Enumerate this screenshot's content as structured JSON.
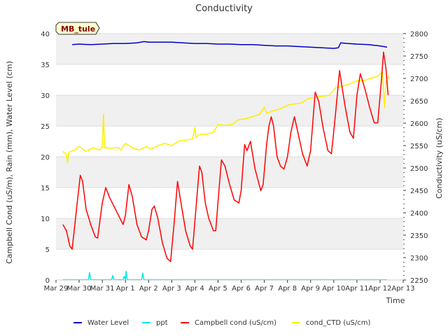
{
  "chart_data": {
    "type": "line",
    "title": "Conductivity",
    "xlabel": "Time",
    "ylabel_left": "Campbell Cond (uS/m), Rain (mm), Water Level (cm)",
    "ylabel_right": "Conductivity (uS/cm)",
    "station_label": "MB_tule",
    "x_ticks": [
      {
        "day": 0,
        "label": "Mar 29"
      },
      {
        "day": 1,
        "label": "Mar 30"
      },
      {
        "day": 2,
        "label": "Mar 31"
      },
      {
        "day": 3,
        "label": "Apr 1"
      },
      {
        "day": 4,
        "label": "Apr 2"
      },
      {
        "day": 5,
        "label": "Apr 3"
      },
      {
        "day": 6,
        "label": "Apr 4"
      },
      {
        "day": 7,
        "label": "Apr 5"
      },
      {
        "day": 8,
        "label": "Apr 6"
      },
      {
        "day": 9,
        "label": "Apr 7"
      },
      {
        "day": 10,
        "label": "Apr 8"
      },
      {
        "day": 11,
        "label": "Apr 9"
      },
      {
        "day": 12,
        "label": "Apr 10"
      },
      {
        "day": 13,
        "label": "Apr 11"
      },
      {
        "day": 14,
        "label": "Apr 12"
      },
      {
        "day": 15,
        "label": "Apr 13"
      }
    ],
    "xlim": [
      0,
      15
    ],
    "ylim_left": [
      0,
      40
    ],
    "ylim_right": [
      2250,
      2800
    ],
    "y_ticks_left": [
      "0",
      "5",
      "10",
      "15",
      "20",
      "25",
      "30",
      "35",
      "40"
    ],
    "y_ticks_right": [
      "2250",
      "2300",
      "2350",
      "2400",
      "2450",
      "2500",
      "2550",
      "2600",
      "2650",
      "2700",
      "2750",
      "2800"
    ],
    "series": [
      {
        "name": "Water Level",
        "axis": "left",
        "color": "#0000cc",
        "points": [
          [
            0.7,
            38.2
          ],
          [
            1.0,
            38.3
          ],
          [
            1.5,
            38.2
          ],
          [
            2.0,
            38.3
          ],
          [
            2.5,
            38.4
          ],
          [
            3.0,
            38.4
          ],
          [
            3.5,
            38.5
          ],
          [
            3.8,
            38.7
          ],
          [
            4.0,
            38.6
          ],
          [
            4.5,
            38.6
          ],
          [
            5.0,
            38.6
          ],
          [
            5.5,
            38.5
          ],
          [
            6.0,
            38.4
          ],
          [
            6.5,
            38.4
          ],
          [
            7.0,
            38.3
          ],
          [
            7.5,
            38.3
          ],
          [
            8.0,
            38.2
          ],
          [
            8.5,
            38.2
          ],
          [
            9.0,
            38.1
          ],
          [
            9.5,
            38.0
          ],
          [
            10.0,
            38.0
          ],
          [
            10.5,
            37.9
          ],
          [
            11.0,
            37.8
          ],
          [
            11.5,
            37.7
          ],
          [
            12.0,
            37.6
          ],
          [
            12.2,
            37.7
          ],
          [
            12.3,
            38.5
          ],
          [
            12.6,
            38.4
          ],
          [
            13.0,
            38.3
          ],
          [
            13.5,
            38.2
          ],
          [
            14.0,
            38.0
          ],
          [
            14.3,
            37.8
          ]
        ]
      },
      {
        "name": "ppt",
        "axis": "left",
        "color": "#00e5e5",
        "points": [
          [
            0.3,
            0.05
          ],
          [
            1.4,
            0.05
          ],
          [
            1.45,
            1.2
          ],
          [
            1.5,
            0.05
          ],
          [
            2.4,
            0.05
          ],
          [
            2.45,
            0.7
          ],
          [
            2.5,
            0.05
          ],
          [
            2.9,
            0.05
          ],
          [
            2.95,
            0.6
          ],
          [
            3.0,
            0.05
          ],
          [
            3.03,
            1.4
          ],
          [
            3.08,
            0.05
          ],
          [
            3.7,
            0.05
          ],
          [
            3.75,
            1.1
          ],
          [
            3.8,
            0.05
          ],
          [
            14.3,
            0.05
          ]
        ]
      },
      {
        "name": "Campbell cond (uS/cm)",
        "axis": "left",
        "color": "#ff0000",
        "points": [
          [
            0.3,
            9.0
          ],
          [
            0.45,
            8.0
          ],
          [
            0.6,
            5.5
          ],
          [
            0.7,
            5.0
          ],
          [
            0.9,
            12.0
          ],
          [
            1.05,
            17.0
          ],
          [
            1.15,
            16.0
          ],
          [
            1.3,
            11.5
          ],
          [
            1.5,
            9.0
          ],
          [
            1.7,
            7.0
          ],
          [
            1.8,
            6.8
          ],
          [
            2.0,
            12.5
          ],
          [
            2.15,
            15.0
          ],
          [
            2.3,
            13.5
          ],
          [
            2.5,
            12.0
          ],
          [
            2.7,
            10.5
          ],
          [
            2.9,
            9.0
          ],
          [
            3.0,
            10.5
          ],
          [
            3.15,
            15.5
          ],
          [
            3.3,
            13.5
          ],
          [
            3.5,
            9.0
          ],
          [
            3.7,
            7.0
          ],
          [
            3.9,
            6.5
          ],
          [
            4.0,
            8.0
          ],
          [
            4.15,
            11.5
          ],
          [
            4.25,
            12.0
          ],
          [
            4.4,
            10.0
          ],
          [
            4.6,
            6.0
          ],
          [
            4.8,
            3.5
          ],
          [
            4.95,
            3.0
          ],
          [
            5.1,
            9.0
          ],
          [
            5.25,
            16.0
          ],
          [
            5.4,
            12.5
          ],
          [
            5.6,
            8.0
          ],
          [
            5.8,
            5.5
          ],
          [
            5.9,
            5.0
          ],
          [
            6.1,
            14.0
          ],
          [
            6.2,
            18.5
          ],
          [
            6.3,
            17.5
          ],
          [
            6.45,
            12.5
          ],
          [
            6.6,
            10.0
          ],
          [
            6.8,
            8.0
          ],
          [
            6.9,
            8.0
          ],
          [
            7.05,
            15.0
          ],
          [
            7.15,
            19.5
          ],
          [
            7.3,
            18.5
          ],
          [
            7.5,
            15.5
          ],
          [
            7.7,
            13.0
          ],
          [
            7.9,
            12.5
          ],
          [
            8.0,
            14.5
          ],
          [
            8.15,
            22.0
          ],
          [
            8.25,
            21.0
          ],
          [
            8.4,
            22.5
          ],
          [
            8.6,
            18.0
          ],
          [
            8.85,
            14.5
          ],
          [
            8.95,
            15.5
          ],
          [
            9.1,
            22.0
          ],
          [
            9.2,
            25.0
          ],
          [
            9.3,
            26.5
          ],
          [
            9.4,
            25.0
          ],
          [
            9.55,
            20.0
          ],
          [
            9.7,
            18.5
          ],
          [
            9.85,
            18.0
          ],
          [
            10.0,
            20.0
          ],
          [
            10.15,
            24.0
          ],
          [
            10.3,
            26.5
          ],
          [
            10.45,
            24.0
          ],
          [
            10.65,
            20.5
          ],
          [
            10.85,
            18.5
          ],
          [
            11.0,
            21.0
          ],
          [
            11.2,
            30.5
          ],
          [
            11.35,
            29.0
          ],
          [
            11.55,
            24.5
          ],
          [
            11.75,
            21.0
          ],
          [
            11.9,
            20.5
          ],
          [
            12.05,
            26.0
          ],
          [
            12.15,
            30.0
          ],
          [
            12.25,
            34.0
          ],
          [
            12.35,
            31.5
          ],
          [
            12.5,
            28.0
          ],
          [
            12.7,
            24.0
          ],
          [
            12.85,
            23.0
          ],
          [
            13.0,
            30.0
          ],
          [
            13.15,
            33.5
          ],
          [
            13.35,
            31.0
          ],
          [
            13.55,
            28.0
          ],
          [
            13.75,
            25.5
          ],
          [
            13.9,
            25.5
          ],
          [
            14.05,
            32.0
          ],
          [
            14.15,
            37.0
          ],
          [
            14.25,
            34.5
          ],
          [
            14.35,
            30.0
          ]
        ]
      },
      {
        "name": "cond_CTD (uS/cm)",
        "axis": "right",
        "color": "#ffee00",
        "points": [
          [
            0.3,
            2537
          ],
          [
            0.45,
            2530
          ],
          [
            0.5,
            2512
          ],
          [
            0.55,
            2535
          ],
          [
            0.8,
            2540
          ],
          [
            1.0,
            2548
          ],
          [
            1.3,
            2537
          ],
          [
            1.6,
            2545
          ],
          [
            1.9,
            2540
          ],
          [
            2.0,
            2547
          ],
          [
            2.05,
            2620
          ],
          [
            2.1,
            2545
          ],
          [
            2.4,
            2544
          ],
          [
            2.7,
            2546
          ],
          [
            2.8,
            2540
          ],
          [
            3.0,
            2555
          ],
          [
            3.3,
            2545
          ],
          [
            3.6,
            2540
          ],
          [
            3.9,
            2548
          ],
          [
            4.1,
            2542
          ],
          [
            4.4,
            2550
          ],
          [
            4.7,
            2555
          ],
          [
            5.0,
            2550
          ],
          [
            5.3,
            2560
          ],
          [
            5.6,
            2562
          ],
          [
            5.9,
            2565
          ],
          [
            6.0,
            2590
          ],
          [
            6.05,
            2568
          ],
          [
            6.2,
            2575
          ],
          [
            6.5,
            2575
          ],
          [
            6.8,
            2580
          ],
          [
            7.0,
            2597
          ],
          [
            7.3,
            2595
          ],
          [
            7.6,
            2597
          ],
          [
            7.9,
            2608
          ],
          [
            8.2,
            2610
          ],
          [
            8.5,
            2615
          ],
          [
            8.8,
            2620
          ],
          [
            9.0,
            2636
          ],
          [
            9.1,
            2622
          ],
          [
            9.4,
            2628
          ],
          [
            9.7,
            2632
          ],
          [
            10.0,
            2640
          ],
          [
            10.3,
            2643
          ],
          [
            10.6,
            2645
          ],
          [
            10.9,
            2655
          ],
          [
            11.2,
            2658
          ],
          [
            11.5,
            2660
          ],
          [
            11.8,
            2662
          ],
          [
            12.1,
            2680
          ],
          [
            12.4,
            2683
          ],
          [
            12.7,
            2688
          ],
          [
            13.0,
            2695
          ],
          [
            13.3,
            2695
          ],
          [
            13.6,
            2700
          ],
          [
            13.9,
            2705
          ],
          [
            14.1,
            2715
          ],
          [
            14.2,
            2635
          ],
          [
            14.25,
            2690
          ],
          [
            14.35,
            2705
          ],
          [
            14.4,
            2700
          ]
        ]
      }
    ]
  }
}
